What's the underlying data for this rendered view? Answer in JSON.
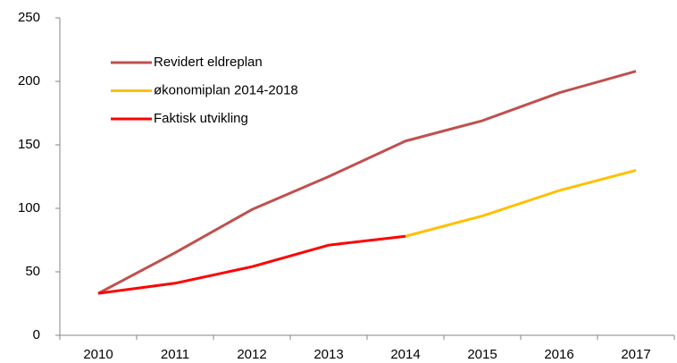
{
  "chart_data": {
    "type": "line",
    "categories": [
      "2010",
      "2011",
      "2012",
      "2013",
      "2014",
      "2015",
      "2016",
      "2017"
    ],
    "series": [
      {
        "name": "Revidert eldreplan",
        "color": "#c0504d",
        "values": [
          33,
          65,
          99,
          125,
          153,
          169,
          191,
          208
        ]
      },
      {
        "name": "økonomiplan 2014-2018",
        "color": "#ffc000",
        "values": [
          null,
          null,
          null,
          null,
          78,
          94,
          114,
          130
        ]
      },
      {
        "name": "Faktisk utvikling",
        "color": "#ff0000",
        "values": [
          33,
          41,
          54,
          71,
          78,
          null,
          null,
          null
        ]
      }
    ],
    "ylim": [
      0,
      250
    ],
    "yticks": [
      0,
      50,
      100,
      150,
      200,
      250
    ],
    "grid": false,
    "legend": "upper left"
  }
}
